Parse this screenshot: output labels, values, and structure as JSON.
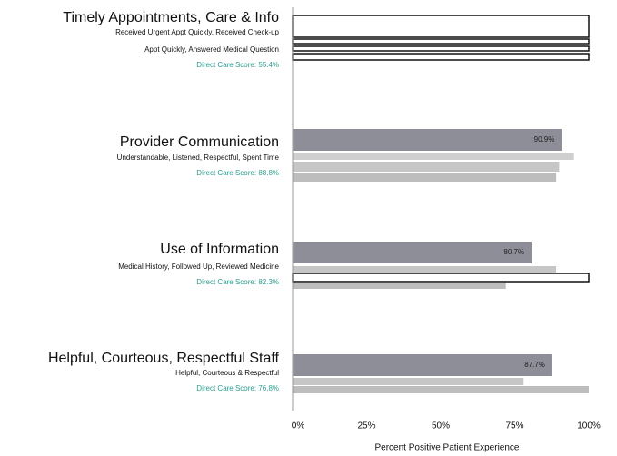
{
  "chart_data": {
    "type": "bar",
    "groups": [
      {
        "title": "Timely Appointments, Care & Info",
        "subtitle_lines": [
          "Received Urgent Appt Quickly, Received Check-up",
          "Appt Quickly, Answered Medical Question"
        ],
        "score": "Direct Care Score: 55.4%",
        "values": [
          100,
          100,
          100,
          100
        ],
        "colors": [
          "#ffffff",
          "#ffffff",
          "#ffffff",
          "#ffffff"
        ]
      },
      {
        "title": "Provider Communication",
        "subtitle_lines": [
          "Understandable, Listened, Respectful, Spent Time"
        ],
        "score": "Direct Care Score: 88.8%",
        "values": [
          90.9,
          95,
          90,
          89
        ],
        "colors": [
          "#8e8e99",
          "#cfcfcf",
          "#c6c6c6",
          "#bdbdbd"
        ],
        "value_label": "90.9%"
      },
      {
        "title": "Use of Information",
        "subtitle_lines": [
          "Medical History, Followed Up, Reviewed Medicine"
        ],
        "score": "Direct Care Score: 82.3%",
        "values": [
          80.7,
          89,
          100,
          72
        ],
        "colors": [
          "#8e8e99",
          "#c6c6c6",
          "#ffffff",
          "#bdbdbd"
        ],
        "value_label": "80.7%"
      },
      {
        "title": "Helpful, Courteous, Respectful Staff",
        "subtitle_lines": [
          "Helpful, Courteous & Respectful"
        ],
        "score": "Direct Care Score: 76.8%",
        "values": [
          87.7,
          78,
          100
        ],
        "colors": [
          "#8e8e99",
          "#c6c6c6",
          "#bdbdbd"
        ],
        "value_label": "87.7%"
      }
    ],
    "xlim": [
      0,
      100
    ],
    "xticks": [
      {
        "value": 0,
        "label": "0%"
      },
      {
        "value": 25,
        "label": "25%"
      },
      {
        "value": 50,
        "label": "50%"
      },
      {
        "value": 75,
        "label": "75%"
      },
      {
        "value": 100,
        "label": "100%"
      }
    ],
    "xlabel": "Percent Positive Patient Experience"
  }
}
